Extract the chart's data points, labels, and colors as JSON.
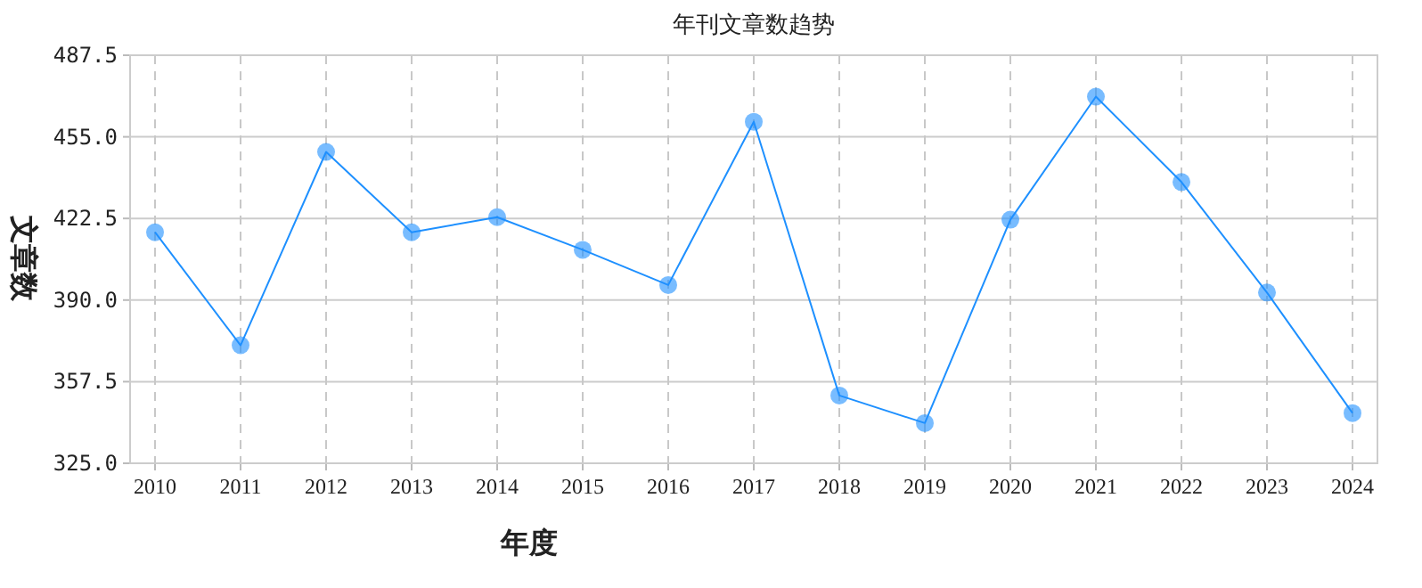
{
  "chart_data": {
    "type": "line",
    "title": "年刊文章数趋势",
    "xlabel": "年度",
    "ylabel": "文章数",
    "categories": [
      "2010",
      "2011",
      "2012",
      "2013",
      "2014",
      "2015",
      "2016",
      "2017",
      "2018",
      "2019",
      "2020",
      "2021",
      "2022",
      "2023",
      "2024"
    ],
    "series": [
      {
        "color": "#1e90ff",
        "values": [
          417,
          372,
          449,
          417,
          423,
          410,
          396,
          461,
          352,
          341,
          422,
          471,
          437,
          393,
          345
        ]
      }
    ],
    "ylim": [
      325,
      487.5
    ],
    "yticks": [
      {
        "value": 325,
        "label": "325.0"
      },
      {
        "value": 357.5,
        "label": "357.5"
      },
      {
        "value": 390,
        "label": "390.0"
      },
      {
        "value": 422.5,
        "label": "422.5"
      },
      {
        "value": 455,
        "label": "455.0"
      },
      {
        "value": 487.5,
        "label": "487.5"
      }
    ],
    "grid": true,
    "marker": "circle",
    "line_style": "solid"
  }
}
